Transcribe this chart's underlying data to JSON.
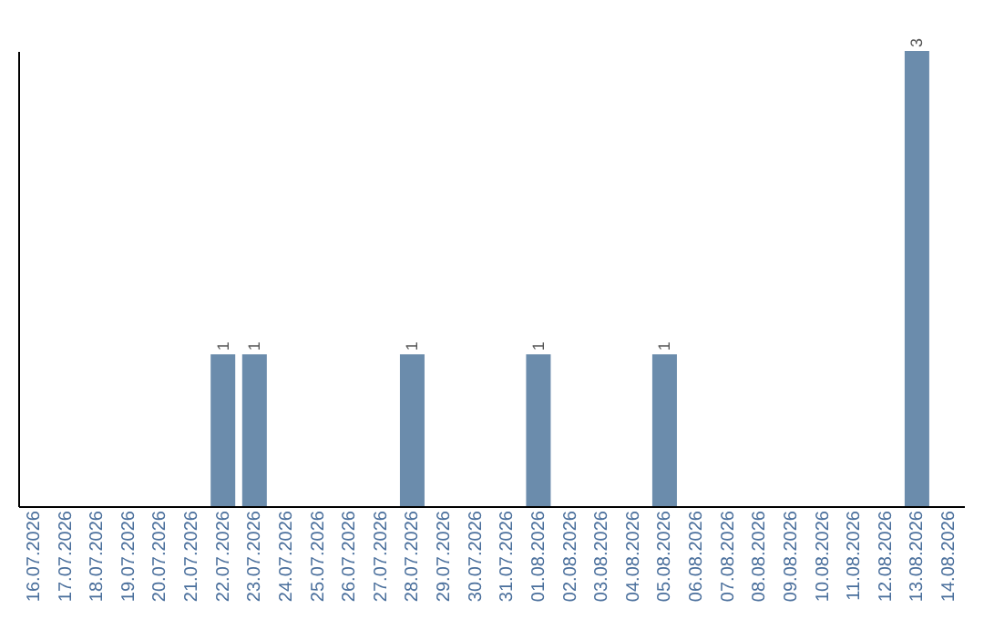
{
  "chart_data": {
    "type": "bar",
    "relative": false,
    "categories": [
      "16.07.2026",
      "17.07.2026",
      "18.07.2026",
      "19.07.2026",
      "20.07.2026",
      "21.07.2026",
      "22.07.2026",
      "23.07.2026",
      "24.07.2026",
      "25.07.2026",
      "26.07.2026",
      "27.07.2026",
      "28.07.2026",
      "29.07.2026",
      "30.07.2026",
      "31.07.2026",
      "01.08.2026",
      "02.08.2026",
      "03.08.2026",
      "04.08.2026",
      "05.08.2026",
      "06.08.2026",
      "07.08.2026",
      "08.08.2026",
      "09.08.2026",
      "10.08.2026",
      "11.08.2026",
      "12.08.2026",
      "13.08.2026",
      "14.08.2026"
    ],
    "values": [
      0,
      0,
      0,
      0,
      0,
      0,
      1,
      1,
      0,
      0,
      0,
      0,
      1,
      0,
      0,
      0,
      1,
      0,
      0,
      0,
      1,
      0,
      0,
      0,
      0,
      0,
      0,
      0,
      3,
      0
    ],
    "value_labels": [
      null,
      null,
      null,
      null,
      null,
      null,
      "1",
      "1",
      null,
      null,
      null,
      null,
      "1",
      null,
      null,
      null,
      "1",
      null,
      null,
      null,
      "1",
      null,
      null,
      null,
      null,
      null,
      null,
      null,
      "3",
      null
    ],
    "color": "#6b8cac"
  }
}
